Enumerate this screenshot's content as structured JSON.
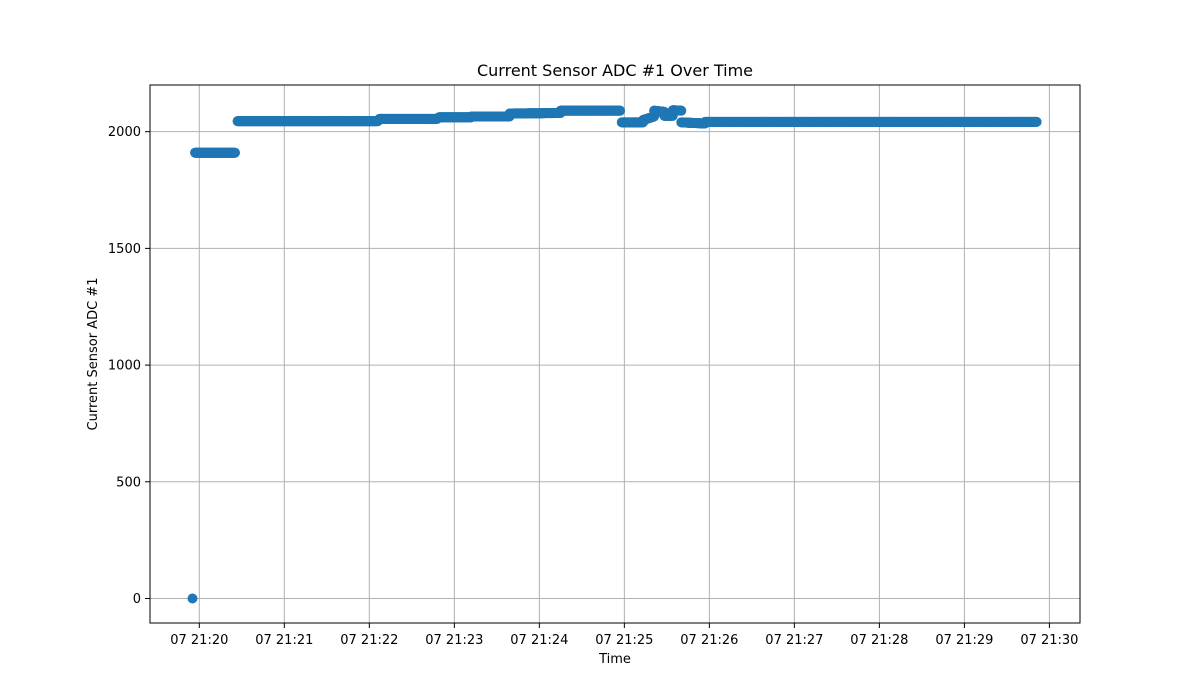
{
  "chart_data": {
    "type": "scatter",
    "title": "Current Sensor ADC #1 Over Time",
    "xlabel": "Time",
    "ylabel": "Current Sensor ADC #1",
    "x_unit": "minutes",
    "x_ticks": [
      {
        "value": 20,
        "label": "07 21:20"
      },
      {
        "value": 21,
        "label": "07 21:21"
      },
      {
        "value": 22,
        "label": "07 21:22"
      },
      {
        "value": 23,
        "label": "07 21:23"
      },
      {
        "value": 24,
        "label": "07 21:24"
      },
      {
        "value": 25,
        "label": "07 21:25"
      },
      {
        "value": 26,
        "label": "07 21:26"
      },
      {
        "value": 27,
        "label": "07 21:27"
      },
      {
        "value": 28,
        "label": "07 21:28"
      },
      {
        "value": 29,
        "label": "07 21:29"
      },
      {
        "value": 30,
        "label": "07 21:30"
      }
    ],
    "y_ticks": [
      0,
      500,
      1000,
      1500,
      2000
    ],
    "xlim": [
      19.42,
      30.36
    ],
    "ylim": [
      -105,
      2200
    ],
    "grid": true,
    "marker_color": "#1f77b4",
    "segments": [
      {
        "x_start": 19.92,
        "x_end": 19.92,
        "y_start": 0,
        "y_end": 0
      },
      {
        "x_start": 19.95,
        "x_end": 20.42,
        "y_start": 1910,
        "y_end": 1910
      },
      {
        "x_start": 20.45,
        "x_end": 21.1,
        "y_start": 2045,
        "y_end": 2045
      },
      {
        "x_start": 21.1,
        "x_end": 22.1,
        "y_start": 2045,
        "y_end": 2045
      },
      {
        "x_start": 22.12,
        "x_end": 22.8,
        "y_start": 2055,
        "y_end": 2055
      },
      {
        "x_start": 22.82,
        "x_end": 23.2,
        "y_start": 2062,
        "y_end": 2062
      },
      {
        "x_start": 23.2,
        "x_end": 23.65,
        "y_start": 2065,
        "y_end": 2065
      },
      {
        "x_start": 23.65,
        "x_end": 24.25,
        "y_start": 2078,
        "y_end": 2080
      },
      {
        "x_start": 24.25,
        "x_end": 24.95,
        "y_start": 2090,
        "y_end": 2090
      },
      {
        "x_start": 24.97,
        "x_end": 25.22,
        "y_start": 2040,
        "y_end": 2040
      },
      {
        "x_start": 25.22,
        "x_end": 25.35,
        "y_start": 2050,
        "y_end": 2065
      },
      {
        "x_start": 25.35,
        "x_end": 25.47,
        "y_start": 2090,
        "y_end": 2085
      },
      {
        "x_start": 25.47,
        "x_end": 25.57,
        "y_start": 2068,
        "y_end": 2068
      },
      {
        "x_start": 25.57,
        "x_end": 25.67,
        "y_start": 2092,
        "y_end": 2090
      },
      {
        "x_start": 25.67,
        "x_end": 25.95,
        "y_start": 2040,
        "y_end": 2035
      },
      {
        "x_start": 25.95,
        "x_end": 29.85,
        "y_start": 2042,
        "y_end": 2042
      }
    ]
  }
}
